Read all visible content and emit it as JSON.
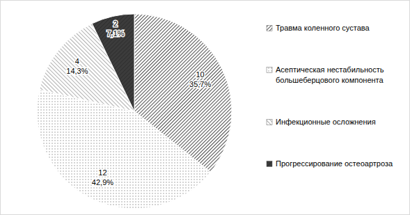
{
  "chart_data": {
    "type": "pie",
    "categories": [
      "Травма коленного сустава",
      "Асептическая нестабильность большеберцового компонента",
      "Инфекционные осложнения",
      "Прогрессирование остеоартроза"
    ],
    "values": [
      10,
      12,
      4,
      2
    ],
    "percentages": [
      35.7,
      42.9,
      14.3,
      7.1
    ],
    "percent_labels": [
      "35,7%",
      "42,9%",
      "14,3%",
      "7,1%"
    ],
    "colors": [
      "#4a4a4a",
      "#8a8a8a",
      "#7a7a7a",
      "#3c3c3c"
    ],
    "data_labels": true,
    "legend": "right"
  }
}
